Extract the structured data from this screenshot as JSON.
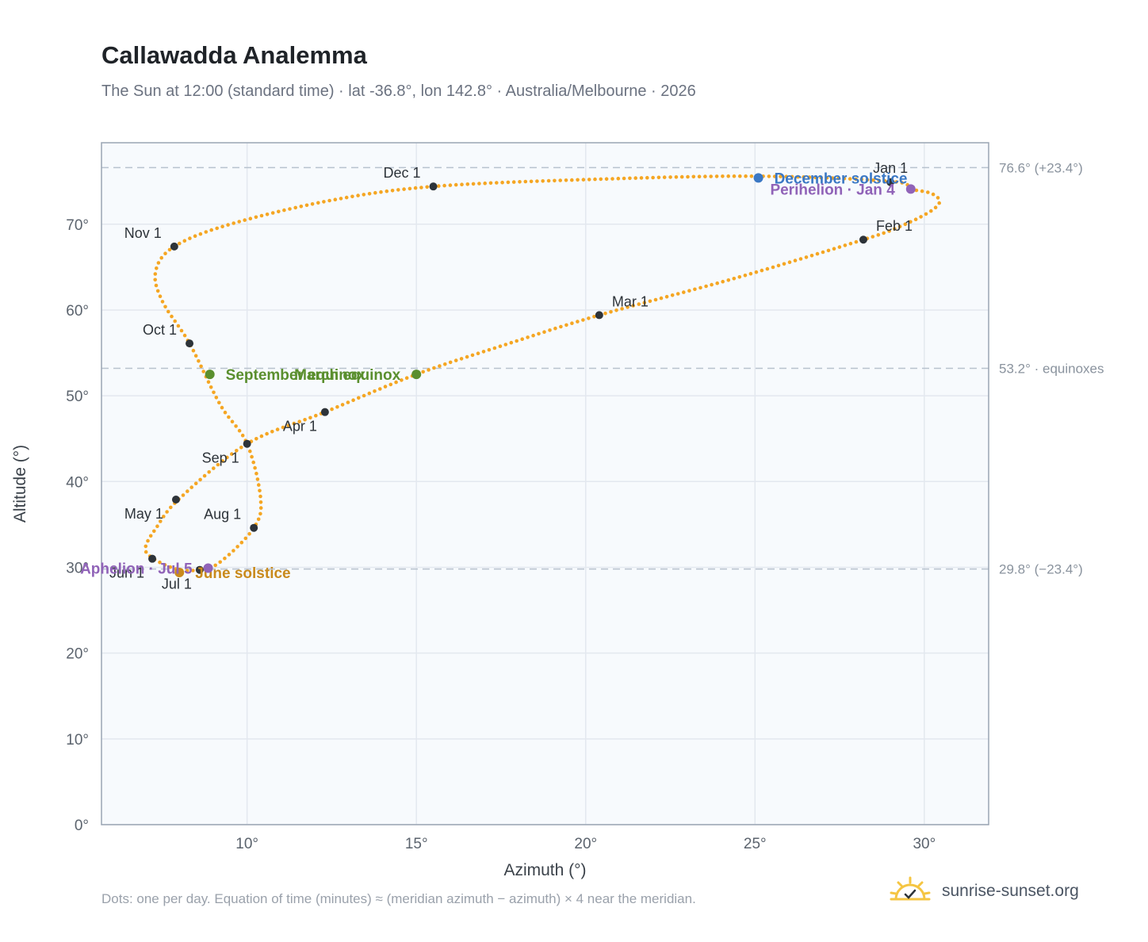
{
  "header": {
    "title": "Callawadda Analemma",
    "subtitle": "The Sun at 12:00 (standard time) · lat -36.8°, lon 142.8° · Australia/Melbourne · 2026"
  },
  "footer": {
    "note": "Dots: one per day. Equation of time (minutes) ≈ (meridian azimuth − azimuth) × 4 near the meridian.",
    "brand": "sunrise-sunset.org"
  },
  "colors": {
    "curve": "#f5a623",
    "month_point": "#2d3339",
    "equinox": "#5a8f2e",
    "june_solstice": "#c98a1c",
    "december_solstice": "#3b78c4",
    "apsis": "#9063b8",
    "reference_line": "#b8c2ce",
    "plot_bg": "#f7fafd"
  },
  "chart_data": {
    "type": "scatter",
    "xlabel": "Azimuth (°)",
    "ylabel": "Altitude (°)",
    "xlim": [
      5.7,
      31.9
    ],
    "ylim": [
      0,
      79.5
    ],
    "xticks": [
      "10°",
      "15°",
      "20°",
      "25°",
      "30°"
    ],
    "xtick_values": [
      10,
      15,
      20,
      25,
      30
    ],
    "yticks": [
      "0°",
      "10°",
      "20°",
      "30°",
      "40°",
      "50°",
      "60°",
      "70°"
    ],
    "ytick_values": [
      0,
      10,
      20,
      30,
      40,
      50,
      60,
      70
    ],
    "grid": true,
    "reference_lines": [
      {
        "y": 76.6,
        "label": "76.6° (+23.4°)"
      },
      {
        "y": 53.2,
        "label": "53.2° · equinoxes"
      },
      {
        "y": 29.8,
        "label": "29.8° (−23.4°)"
      }
    ],
    "analemma_path_keypoints": [
      {
        "x": 29.6,
        "y": 74.1
      },
      {
        "x": 30.2,
        "y": 73.6
      },
      {
        "x": 30.45,
        "y": 72.6
      },
      {
        "x": 30.1,
        "y": 71.3
      },
      {
        "x": 29.2,
        "y": 69.6
      },
      {
        "x": 28.2,
        "y": 68.2
      },
      {
        "x": 24.5,
        "y": 63.8
      },
      {
        "x": 20.4,
        "y": 59.4
      },
      {
        "x": 17.5,
        "y": 55.8
      },
      {
        "x": 15.0,
        "y": 52.5
      },
      {
        "x": 12.3,
        "y": 48.1
      },
      {
        "x": 10.0,
        "y": 44.4
      },
      {
        "x": 8.0,
        "y": 38.0
      },
      {
        "x": 7.3,
        "y": 34.5
      },
      {
        "x": 7.0,
        "y": 32.3
      },
      {
        "x": 7.2,
        "y": 31.1
      },
      {
        "x": 7.9,
        "y": 29.8
      },
      {
        "x": 8.55,
        "y": 29.7
      },
      {
        "x": 9.2,
        "y": 30.6
      },
      {
        "x": 10.2,
        "y": 34.6
      },
      {
        "x": 10.4,
        "y": 38.0
      },
      {
        "x": 10.0,
        "y": 44.4
      },
      {
        "x": 9.2,
        "y": 49.0
      },
      {
        "x": 8.3,
        "y": 56.1
      },
      {
        "x": 7.5,
        "y": 61.0
      },
      {
        "x": 7.3,
        "y": 64.5
      },
      {
        "x": 7.85,
        "y": 67.4
      },
      {
        "x": 9.5,
        "y": 70.0
      },
      {
        "x": 12.5,
        "y": 72.8
      },
      {
        "x": 15.5,
        "y": 74.4
      },
      {
        "x": 20.0,
        "y": 75.2
      },
      {
        "x": 25.0,
        "y": 75.6
      },
      {
        "x": 29.0,
        "y": 75.0
      },
      {
        "x": 29.6,
        "y": 74.1
      }
    ],
    "month_points": [
      {
        "label": "Jan 1",
        "x": 29.0,
        "y": 74.9,
        "pos": "above"
      },
      {
        "label": "Feb 1",
        "x": 28.2,
        "y": 68.2,
        "pos": "above-right"
      },
      {
        "label": "Mar 1",
        "x": 20.4,
        "y": 59.4,
        "pos": "above-right"
      },
      {
        "label": "Apr 1",
        "x": 12.3,
        "y": 48.1,
        "pos": "below-left"
      },
      {
        "label": "May 1",
        "x": 7.9,
        "y": 37.9,
        "pos": "left"
      },
      {
        "label": "Jun 1",
        "x": 7.2,
        "y": 31.0,
        "pos": "below-left"
      },
      {
        "label": "Jul 1",
        "x": 8.6,
        "y": 29.7,
        "pos": "below-left"
      },
      {
        "label": "Aug 1",
        "x": 10.2,
        "y": 34.6,
        "pos": "above-left"
      },
      {
        "label": "Sep 1",
        "x": 10.0,
        "y": 44.4,
        "pos": "below-left"
      },
      {
        "label": "Oct 1",
        "x": 8.3,
        "y": 56.1,
        "pos": "above-left"
      },
      {
        "label": "Nov 1",
        "x": 7.85,
        "y": 67.4,
        "pos": "above-left"
      },
      {
        "label": "Dec 1",
        "x": 15.5,
        "y": 74.4,
        "pos": "above-left"
      }
    ],
    "events": [
      {
        "label": "December solstice",
        "x": 25.1,
        "y": 75.4,
        "color_key": "december_solstice",
        "pos": "right"
      },
      {
        "label": "Perihelion · Jan 4",
        "x": 29.6,
        "y": 74.1,
        "color_key": "apsis",
        "pos": "left"
      },
      {
        "label": "March equinox",
        "x": 15.0,
        "y": 52.5,
        "color_key": "equinox",
        "pos": "left"
      },
      {
        "label": "September equinox",
        "x": 8.9,
        "y": 52.5,
        "color_key": "equinox",
        "pos": "right"
      },
      {
        "label": "June solstice",
        "x": 8.0,
        "y": 29.4,
        "color_key": "june_solstice",
        "pos": "right"
      },
      {
        "label": "Aphelion · Jul 5",
        "x": 8.85,
        "y": 29.9,
        "color_key": "apsis",
        "pos": "left"
      }
    ]
  }
}
